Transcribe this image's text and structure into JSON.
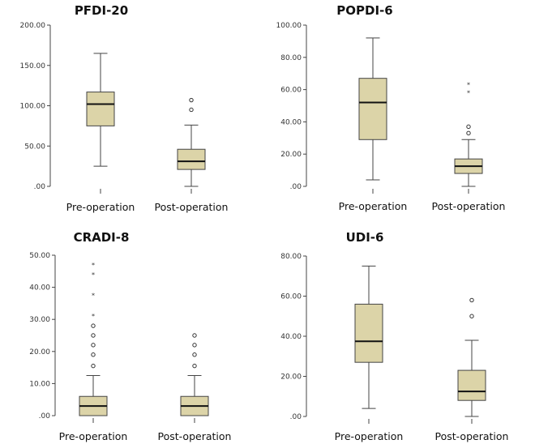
{
  "chart_data": [
    {
      "type": "boxplot",
      "title": "PFDI-20",
      "ylim": [
        0,
        200
      ],
      "ticks": [
        ".00",
        "50.00",
        "100.00",
        "150.00",
        "200.00"
      ],
      "tick_values": [
        0,
        50,
        100,
        150,
        200
      ],
      "categories": [
        "Pre-operation",
        "Post-operation"
      ],
      "boxes": [
        {
          "min": 25,
          "q1": 75,
          "median": 102,
          "q3": 117,
          "max": 165,
          "outliers": [],
          "extremes": []
        },
        {
          "min": 0,
          "q1": 21,
          "median": 31,
          "q3": 46,
          "max": 76,
          "outliers": [
            95,
            107
          ],
          "extremes": []
        }
      ]
    },
    {
      "type": "boxplot",
      "title": "POPDI-6",
      "ylim": [
        0,
        100
      ],
      "ticks": [
        ".00",
        "20.00",
        "40.00",
        "60.00",
        "80.00",
        "100.00"
      ],
      "tick_values": [
        0,
        20,
        40,
        60,
        80,
        100
      ],
      "categories": [
        "Pre-operation",
        "Post-operation"
      ],
      "boxes": [
        {
          "min": 4,
          "q1": 29,
          "median": 52,
          "q3": 67,
          "max": 92,
          "outliers": [],
          "extremes": []
        },
        {
          "min": 0,
          "q1": 8,
          "median": 12.5,
          "q3": 17,
          "max": 29,
          "outliers": [
            33,
            37
          ],
          "extremes": [
            58,
            63
          ]
        }
      ]
    },
    {
      "type": "boxplot",
      "title": "CRADI-8",
      "ylim": [
        0,
        50
      ],
      "ticks": [
        ".00",
        "10.00",
        "20.00",
        "30.00",
        "40.00",
        "50.00"
      ],
      "tick_values": [
        0,
        10,
        20,
        30,
        40,
        50
      ],
      "categories": [
        "Pre-operation",
        "Post-operation"
      ],
      "boxes": [
        {
          "min": 0,
          "q1": 0,
          "median": 3,
          "q3": 6,
          "max": 12.5,
          "outliers": [
            15.5,
            19,
            22,
            25,
            28
          ],
          "extremes": [
            31,
            37.5,
            44,
            47
          ]
        },
        {
          "min": 0,
          "q1": 0,
          "median": 3,
          "q3": 6,
          "max": 12.5,
          "outliers": [
            15.5,
            19,
            22,
            25
          ],
          "extremes": []
        }
      ]
    },
    {
      "type": "boxplot",
      "title": "UDI-6",
      "ylim": [
        0,
        80
      ],
      "ticks": [
        ".00",
        "20.00",
        "40.00",
        "60.00",
        "80.00"
      ],
      "tick_values": [
        0,
        20,
        40,
        60,
        80
      ],
      "categories": [
        "Pre-operation",
        "Post-operation"
      ],
      "boxes": [
        {
          "min": 4,
          "q1": 27,
          "median": 37.5,
          "q3": 56,
          "max": 75,
          "outliers": [],
          "extremes": []
        },
        {
          "min": 0,
          "q1": 8,
          "median": 12.5,
          "q3": 23,
          "max": 38,
          "outliers": [
            50,
            58
          ],
          "extremes": []
        }
      ]
    }
  ]
}
